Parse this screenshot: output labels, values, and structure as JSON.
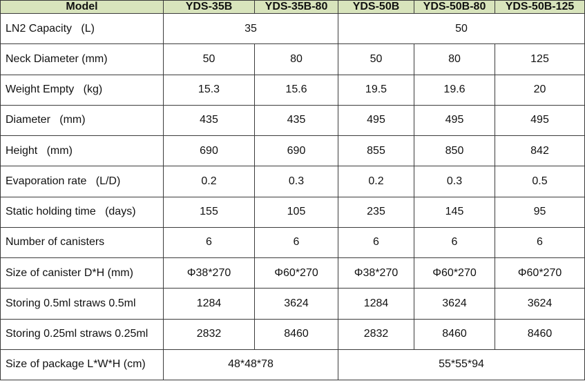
{
  "table": {
    "header": [
      "Model",
      "YDS-35B",
      "YDS-35B-80",
      "YDS-50B",
      "YDS-50B-80",
      "YDS-50B-125"
    ],
    "rows": [
      [
        "LN2 Capacity   (L)",
        "35",
        "50"
      ],
      [
        "Neck Diameter (mm)",
        "50",
        "80",
        "50",
        "80",
        "125"
      ],
      [
        "Weight Empty   (kg)",
        "15.3",
        "15.6",
        "19.5",
        "19.6",
        "20"
      ],
      [
        "Diameter   (mm)",
        "435",
        "435",
        "495",
        "495",
        "495"
      ],
      [
        "Height   (mm)",
        "690",
        "690",
        "855",
        "850",
        "842"
      ],
      [
        "Evaporation rate   (L/D)",
        "0.2",
        "0.3",
        "0.2",
        "0.3",
        "0.5"
      ],
      [
        "Static holding time   (days)",
        "155",
        "105",
        "235",
        "145",
        "95"
      ],
      [
        "Number of canisters",
        "6",
        "6",
        "6",
        "6",
        "6"
      ],
      [
        "Size of canister D*H (mm)",
        "Φ38*270",
        "Φ60*270",
        "Φ38*270",
        "Φ60*270",
        "Φ60*270"
      ],
      [
        "Storing 0.5ml straws 0.5ml",
        "1284",
        "3624",
        "1284",
        "3624",
        "3624"
      ],
      [
        "Storing 0.25ml straws 0.25ml",
        "2832",
        "8460",
        "2832",
        "8460",
        "8460"
      ],
      [
        "Size of package L*W*H (cm)",
        "48*48*78",
        "55*55*94"
      ]
    ]
  }
}
